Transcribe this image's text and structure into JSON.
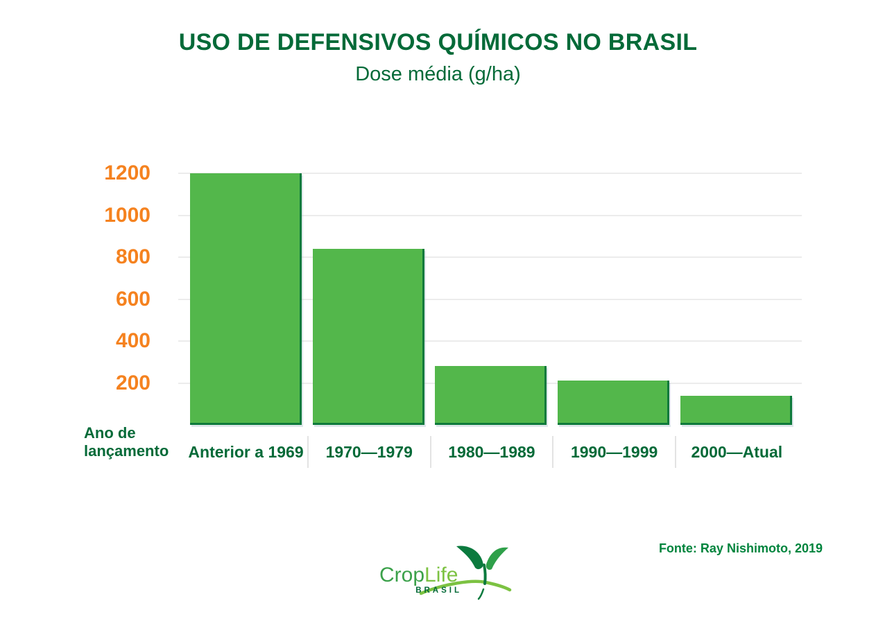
{
  "header": {
    "title": "USO DE DEFENSIVOS QUÍMICOS NO BRASIL",
    "subtitle": "Dose média (g/ha)"
  },
  "chart_data": {
    "type": "bar",
    "title": "USO DE DEFENSIVOS QUÍMICOS NO BRASIL",
    "subtitle": "Dose média (g/ha)",
    "categories": [
      "Anterior a 1969",
      "1970—1979",
      "1980—1989",
      "1990—1999",
      "2000—Atual"
    ],
    "values": [
      1200,
      840,
      280,
      210,
      140
    ],
    "xlabel": "Ano de lançamento",
    "ylabel": "Dose média (g/ha)",
    "ylim": [
      0,
      1200
    ],
    "yticks": [
      200,
      400,
      600,
      800,
      1000,
      1200
    ],
    "grid": true,
    "legend": false
  },
  "colors": {
    "dark_green": "#046A38",
    "orange_ticks": "#F5821F",
    "bar_fill": "#53B74B",
    "bar_edge": "#0E7A3C",
    "gridline": "#ECECEC",
    "divider": "#E3E3E3",
    "source_green": "#00843D",
    "logo_crop_green": "#3BA14A",
    "logo_life_green": "#7CC242"
  },
  "footer": {
    "source": "Fonte: Ray Nishimoto, 2019",
    "logo": {
      "crop": "Crop",
      "life": "Life",
      "country": "BRASIL"
    }
  }
}
